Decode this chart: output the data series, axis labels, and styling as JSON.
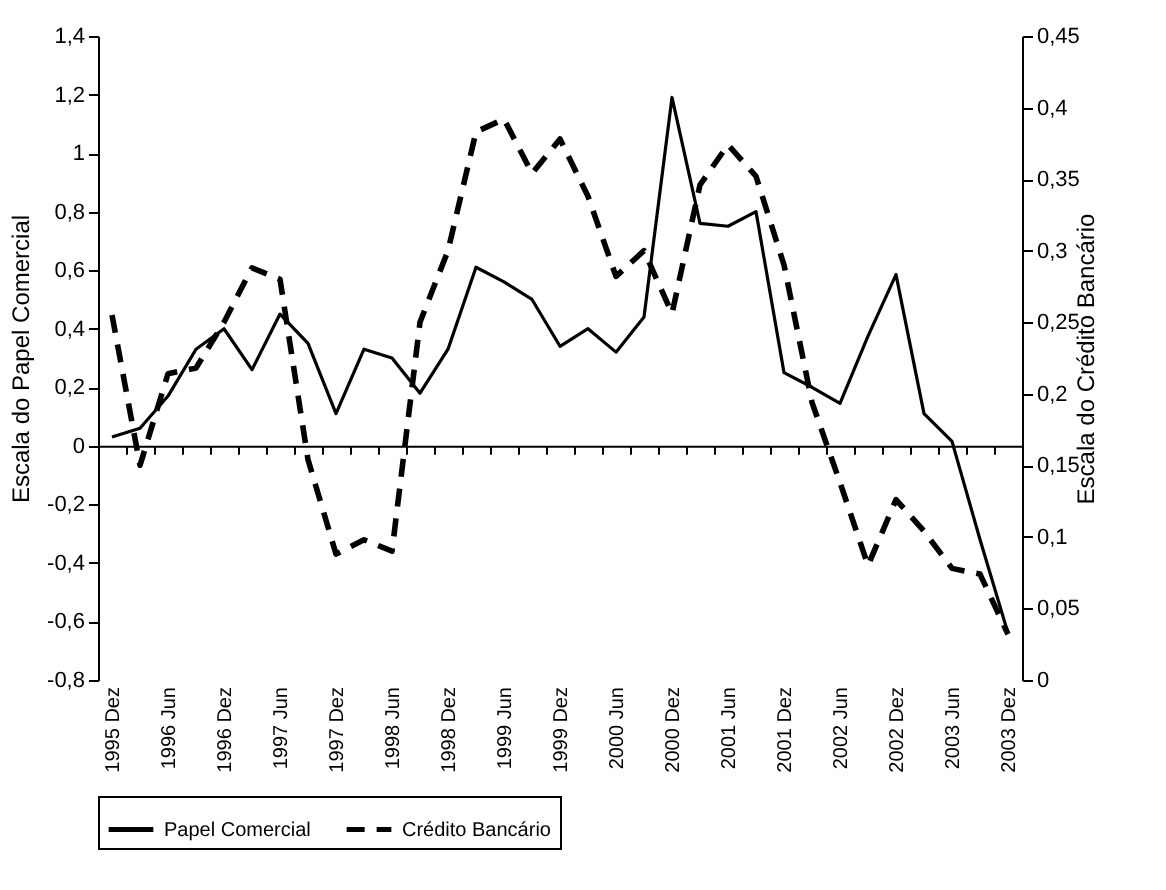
{
  "chart_data": {
    "type": "line",
    "categories": [
      "1995 Dez",
      null,
      "1996 Jun",
      null,
      "1996 Dez",
      null,
      "1997 Jun",
      null,
      "1997 Dez",
      null,
      "1998 Jun",
      null,
      "1998 Dez",
      null,
      "1999 Jun",
      null,
      "1999 Dez",
      null,
      "2000 Jun",
      null,
      "2000 Dez",
      null,
      "2001 Jun",
      null,
      "2001 Dez",
      null,
      "2002 Jun",
      null,
      "2002 Dez",
      null,
      "2003 Jun",
      null,
      "2003 Dez"
    ],
    "series": [
      {
        "name": "Papel Comercial",
        "color": "#000000",
        "line_style": "solid",
        "values": [
          0.03,
          0.06,
          0.17,
          0.33,
          0.4,
          0.26,
          0.45,
          0.35,
          0.11,
          0.33,
          0.3,
          0.18,
          0.33,
          0.61,
          0.56,
          0.5,
          0.34,
          0.4,
          0.32,
          0.44,
          1.19,
          0.76,
          0.75,
          0.8,
          0.25,
          0.2,
          0.145,
          0.375,
          0.585,
          0.11,
          0.015,
          -0.32,
          -0.64
        ]
      },
      {
        "name": "Crédito Bancário",
        "color": "#000000",
        "line_style": "dashed",
        "axis": "y2",
        "values": [
          0.255,
          0.15,
          0.214,
          0.218,
          0.25,
          0.288,
          0.28,
          0.154,
          0.088,
          0.098,
          0.09,
          0.25,
          0.3,
          0.383,
          0.392,
          0.354,
          0.378,
          0.338,
          0.282,
          0.3,
          0.256,
          0.346,
          0.374,
          0.352,
          0.29,
          0.194,
          0.138,
          0.08,
          0.126,
          0.104,
          0.078,
          0.074,
          0.032
        ]
      }
    ],
    "ylabel": "Escala do Papel Comercial",
    "y2label": "Escala do Crédito Bancário",
    "ylim": [
      -0.8,
      1.4
    ],
    "yticks": [
      {
        "value": -0.8,
        "label": "-0,8"
      },
      {
        "value": -0.6,
        "label": "-0,6"
      },
      {
        "value": -0.4,
        "label": "-0,4"
      },
      {
        "value": -0.2,
        "label": "-0,2"
      },
      0,
      {
        "value": 0.2,
        "label": "0,2"
      },
      {
        "value": 0.4,
        "label": "0,4"
      },
      {
        "value": 0.6,
        "label": "0,6"
      },
      {
        "value": 0.8,
        "label": "0,8"
      },
      1,
      {
        "value": 1.2,
        "label": "1,2"
      },
      {
        "value": 1.4,
        "label": "1,4"
      }
    ],
    "y2lim": [
      0,
      0.45
    ],
    "y2ticks": [
      0,
      {
        "value": 0.05,
        "label": "0,05"
      },
      {
        "value": 0.1,
        "label": "0,1"
      },
      {
        "value": 0.15,
        "label": "0,15"
      },
      {
        "value": 0.2,
        "label": "0,2"
      },
      {
        "value": 0.25,
        "label": "0,25"
      },
      {
        "value": 0.3,
        "label": "0,3"
      },
      {
        "value": 0.35,
        "label": "0,35"
      },
      {
        "value": 0.4,
        "label": "0,4"
      },
      {
        "value": 0.45,
        "label": "0,45"
      }
    ],
    "legend": "bottom"
  }
}
